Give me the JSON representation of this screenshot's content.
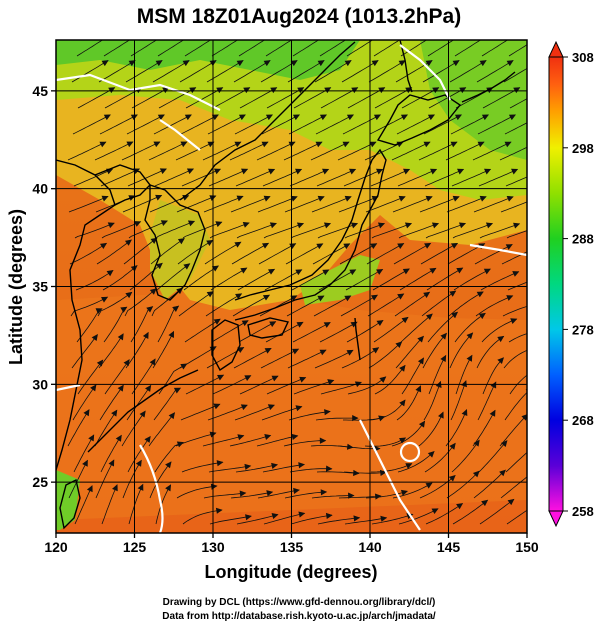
{
  "title": "MSM 18Z01Aug2024 (1013.2hPa)",
  "xaxis": {
    "label": "Longitude (degrees)",
    "range": [
      120,
      150
    ],
    "ticks": [
      120,
      125,
      130,
      135,
      140,
      145,
      150
    ]
  },
  "yaxis": {
    "label": "Latitude  (degrees)",
    "range": [
      22.4,
      47.6
    ],
    "ticks": [
      25,
      30,
      35,
      40,
      45
    ]
  },
  "colorbar": {
    "range": [
      258,
      308
    ],
    "ticks": [
      258,
      268,
      278,
      288,
      298,
      308
    ],
    "colors": {
      "258": "#ff10e0",
      "263": "#5a00d8",
      "268": "#0000e0",
      "273": "#0060ff",
      "278": "#00c8e8",
      "283": "#00d880",
      "288": "#20d020",
      "293": "#90e000",
      "298": "#f0f000",
      "302": "#ffa000",
      "305": "#ff6010",
      "308": "#f03010"
    }
  },
  "grid": true,
  "credits": {
    "line1": "Drawing by DCL (https://www.gfd-dennou.org/library/dcl/)",
    "line2": "Data from http://database.rish.kyoto-u.ac.jp/arch/jmadata/"
  }
}
